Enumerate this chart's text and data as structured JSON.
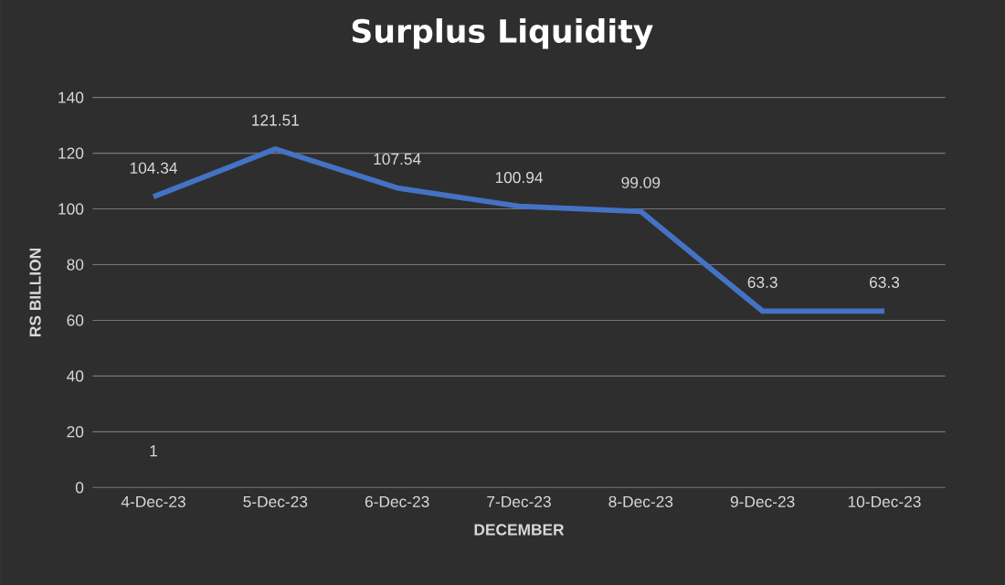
{
  "chart_data": {
    "type": "line",
    "title": "Surplus Liquidity",
    "xlabel": "DECEMBER",
    "ylabel": "RS BILLION",
    "categories": [
      "4-Dec-23",
      "5-Dec-23",
      "6-Dec-23",
      "7-Dec-23",
      "8-Dec-23",
      "9-Dec-23",
      "10-Dec-23"
    ],
    "values": [
      104.34,
      121.51,
      107.54,
      100.94,
      99.09,
      63.3,
      63.3
    ],
    "color": "#4472c4",
    "ylim": [
      0,
      140
    ],
    "yticks": [
      0,
      20,
      40,
      60,
      80,
      100,
      120,
      140
    ],
    "grid": "y",
    "data_labels": true,
    "marker": "none",
    "line_style": "solid",
    "annotations": [
      "1"
    ]
  }
}
